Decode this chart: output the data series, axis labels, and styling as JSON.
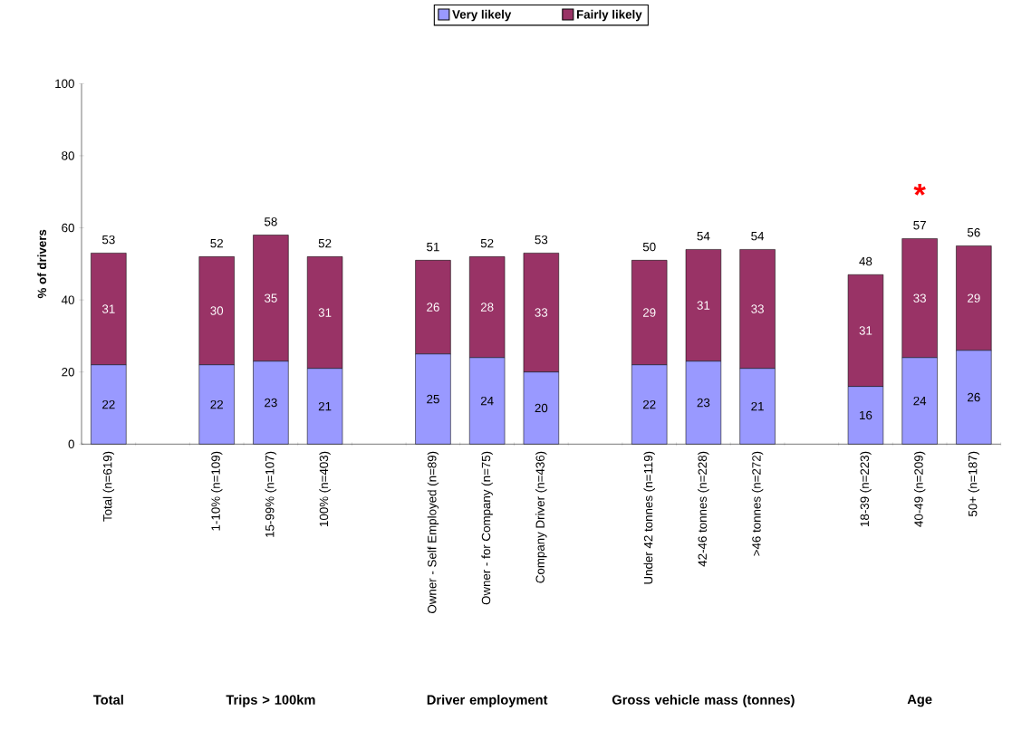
{
  "chart_data": {
    "type": "bar",
    "stacked": true,
    "ylabel": "% of drivers",
    "categories": [
      "Total (n=619)",
      null,
      "1-10% (n=109)",
      "15-99% (n=107)",
      "100% (n=403)",
      null,
      "Owner - Self Employed (n=89)",
      "Owner - for Company (n=75)",
      "Company Driver (n=436)",
      null,
      "Under 42 tonnes (n=119)",
      "42-46 tonnes (n=228)",
      ">46 tonnes (n=272)",
      null,
      "18-39 (n=223)",
      "40-49 (n=209)",
      "50+ (n=187)"
    ],
    "series": [
      {
        "name": "Very likely",
        "color": "#9999ff",
        "values": [
          22,
          null,
          22,
          23,
          21,
          null,
          25,
          24,
          20,
          null,
          22,
          23,
          21,
          null,
          16,
          24,
          26
        ],
        "value_labels": [
          "22",
          null,
          "22",
          "23",
          "21",
          null,
          "25",
          "24",
          "20",
          null,
          "22",
          "23",
          "21",
          null,
          "16",
          "24",
          "26"
        ]
      },
      {
        "name": "Fairly likely",
        "color": "#993366",
        "values": [
          31,
          null,
          30,
          35,
          31,
          null,
          26,
          28,
          33,
          null,
          29,
          31,
          33,
          null,
          31,
          33,
          29
        ],
        "value_labels": [
          "31",
          null,
          "30",
          "35",
          "31",
          null,
          "26",
          "28",
          "33",
          null,
          "29",
          "31",
          "33",
          null,
          "31",
          "33",
          "29"
        ]
      }
    ],
    "totals": [
      "53",
      null,
      "52",
      "58",
      "52",
      null,
      "51",
      "52",
      "53",
      null,
      "50",
      "54",
      "54",
      null,
      "48",
      "57",
      "56"
    ],
    "ylim": [
      0,
      100
    ],
    "yticks": [
      0,
      20,
      40,
      60,
      80,
      100
    ],
    "legend": "top",
    "annotations": [
      "Total",
      "Trips > 100km",
      "Driver employment",
      "Gross vehicle mass (tonnes)",
      "Age",
      {
        "text": "*",
        "x": "40-49 (n=209)",
        "y": 57
      }
    ]
  }
}
